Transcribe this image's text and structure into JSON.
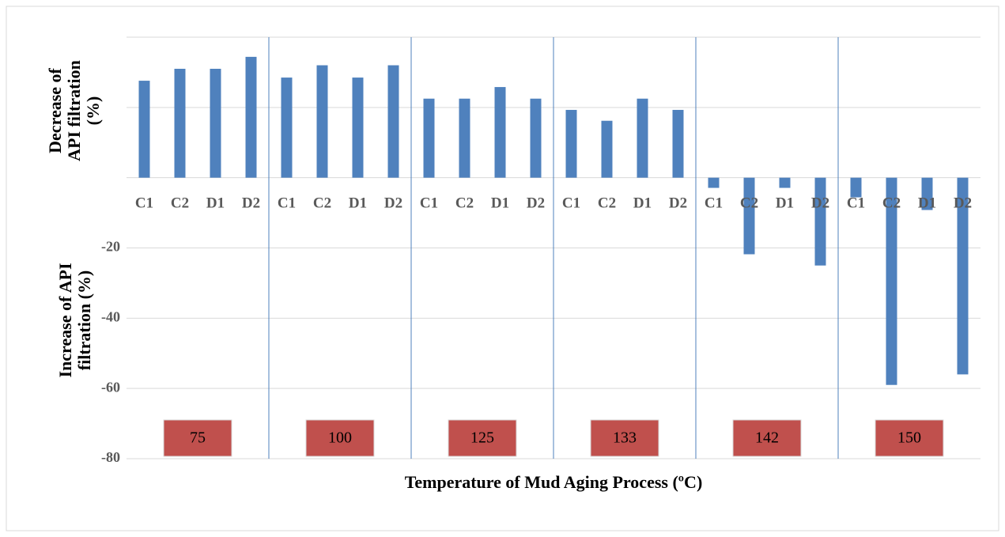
{
  "chart_data": {
    "type": "bar",
    "x_label": "Temperature of Mud Aging Process (ºC)",
    "y_label_top": [
      "Decrease of",
      "API filtration",
      "(%)"
    ],
    "y_label_bottom": [
      "Increase of API",
      "filtration (%)"
    ],
    "categories": [
      "C1",
      "C2",
      "D1",
      "D2",
      "C1",
      "C2",
      "D1",
      "D2",
      "C1",
      "C2",
      "D1",
      "D2",
      "C1",
      "C2",
      "D1",
      "D2",
      "C1",
      "C2",
      "D1",
      "D2",
      "C1",
      "C2",
      "D1",
      "D2"
    ],
    "groups": [
      "75",
      "100",
      "125",
      "133",
      "142",
      "150"
    ],
    "values": [
      27.6,
      31,
      31,
      34.4,
      28.5,
      32,
      28.5,
      32,
      22.5,
      22.5,
      25.8,
      22.5,
      19.3,
      16.2,
      22.5,
      19.3,
      -2.9,
      -21.8,
      -2.9,
      -25,
      -5.6,
      -59,
      -9.2,
      -56
    ],
    "color": "#4f81bd",
    "group_box_color": "#c0504d",
    "ylim": [
      -80,
      40
    ],
    "yticks": [
      -80,
      -60,
      -40,
      -20
    ],
    "ygrid": [
      -80,
      -60,
      -40,
      -20,
      0,
      20,
      40
    ],
    "grid": true
  }
}
